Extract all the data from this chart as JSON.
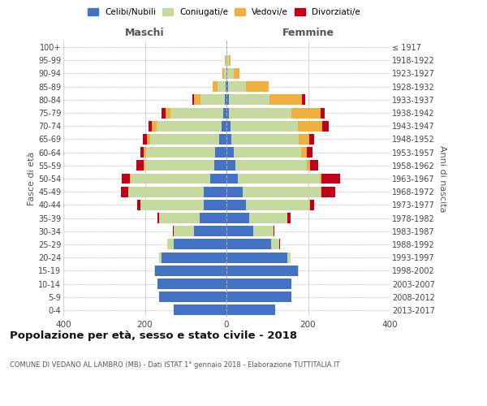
{
  "age_groups": [
    "0-4",
    "5-9",
    "10-14",
    "15-19",
    "20-24",
    "25-29",
    "30-34",
    "35-39",
    "40-44",
    "45-49",
    "50-54",
    "55-59",
    "60-64",
    "65-69",
    "70-74",
    "75-79",
    "80-84",
    "85-89",
    "90-94",
    "95-99",
    "100+"
  ],
  "birth_years": [
    "2013-2017",
    "2008-2012",
    "2003-2007",
    "1998-2002",
    "1993-1997",
    "1988-1992",
    "1983-1987",
    "1978-1982",
    "1973-1977",
    "1968-1972",
    "1963-1967",
    "1958-1962",
    "1953-1957",
    "1948-1952",
    "1943-1947",
    "1938-1942",
    "1933-1937",
    "1928-1932",
    "1923-1927",
    "1918-1922",
    "≤ 1917"
  ],
  "colors": {
    "celibe": "#4472c4",
    "coniugato": "#c5d9a0",
    "vedovo": "#f0b040",
    "divorziato": "#c0001a"
  },
  "maschi": {
    "celibe": [
      130,
      165,
      170,
      175,
      160,
      130,
      80,
      65,
      55,
      55,
      40,
      30,
      28,
      18,
      12,
      8,
      4,
      2,
      0,
      0,
      0
    ],
    "coniugato": [
      0,
      0,
      0,
      2,
      5,
      15,
      50,
      100,
      155,
      185,
      195,
      170,
      170,
      170,
      160,
      130,
      60,
      20,
      5,
      2,
      0
    ],
    "vedovo": [
      0,
      0,
      0,
      0,
      0,
      0,
      0,
      0,
      0,
      1,
      2,
      2,
      4,
      8,
      12,
      12,
      15,
      12,
      5,
      2,
      0
    ],
    "divorziato": [
      0,
      0,
      0,
      0,
      0,
      0,
      2,
      5,
      8,
      18,
      20,
      18,
      8,
      8,
      8,
      10,
      5,
      0,
      0,
      0,
      0
    ]
  },
  "femmine": {
    "nubile": [
      120,
      160,
      160,
      175,
      150,
      110,
      65,
      55,
      48,
      40,
      28,
      22,
      18,
      12,
      10,
      5,
      5,
      3,
      2,
      0,
      0
    ],
    "coniugata": [
      0,
      0,
      0,
      3,
      8,
      20,
      50,
      95,
      155,
      190,
      200,
      175,
      165,
      165,
      165,
      155,
      100,
      45,
      15,
      5,
      0
    ],
    "vedova": [
      0,
      0,
      0,
      0,
      0,
      0,
      0,
      0,
      2,
      2,
      5,
      8,
      15,
      25,
      60,
      70,
      80,
      55,
      15,
      5,
      0
    ],
    "divorziata": [
      0,
      0,
      0,
      0,
      0,
      2,
      2,
      8,
      10,
      35,
      45,
      20,
      12,
      12,
      15,
      10,
      8,
      0,
      0,
      0,
      0
    ]
  },
  "title": "Popolazione per età, sesso e stato civile - 2018",
  "subtitle": "COMUNE DI VEDANO AL LAMBRO (MB) - Dati ISTAT 1° gennaio 2018 - Elaborazione TUTTITALIA.IT",
  "ylabel_left": "Fasce di età",
  "ylabel_right": "Anni di nascita",
  "xlabel_left": "Maschi",
  "xlabel_right": "Femmine",
  "xlim": 400,
  "bg_color": "#ffffff",
  "grid_color": "#cccccc",
  "bar_height": 0.8
}
